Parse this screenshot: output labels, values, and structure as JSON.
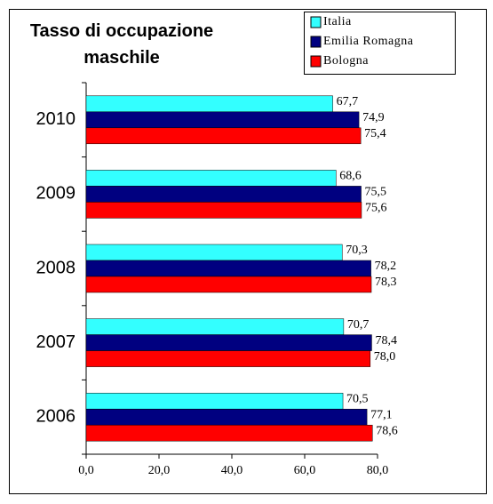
{
  "chart_data": {
    "type": "bar",
    "orientation": "horizontal",
    "title": "Tasso di occupazione maschile",
    "categories": [
      "2010",
      "2009",
      "2008",
      "2007",
      "2006"
    ],
    "series": [
      {
        "name": "Italia",
        "color": "#33ffff",
        "values": [
          67.7,
          68.6,
          70.3,
          70.7,
          70.5
        ],
        "value_labels": [
          "67,7",
          "68,6",
          "70,3",
          "70,7",
          "70,5"
        ]
      },
      {
        "name": "Emilia Romagna",
        "color": "#000080",
        "values": [
          74.9,
          75.5,
          78.2,
          78.4,
          77.1
        ],
        "value_labels": [
          "74,9",
          "75,5",
          "78,2",
          "78,4",
          "77,1"
        ]
      },
      {
        "name": "Bologna",
        "color": "#ff0000",
        "values": [
          75.4,
          75.6,
          78.3,
          78.0,
          78.6
        ],
        "value_labels": [
          "75,4",
          "75,6",
          "78,3",
          "78,0",
          "78,6"
        ]
      }
    ],
    "xlim": [
      0,
      80
    ],
    "xticks": [
      {
        "value": 0,
        "label": "0,0"
      },
      {
        "value": 20,
        "label": "20,0"
      },
      {
        "value": 40,
        "label": "40,0"
      },
      {
        "value": 60,
        "label": "60,0"
      },
      {
        "value": 80,
        "label": "80,0"
      }
    ],
    "legend": "top-right",
    "grid": false
  }
}
